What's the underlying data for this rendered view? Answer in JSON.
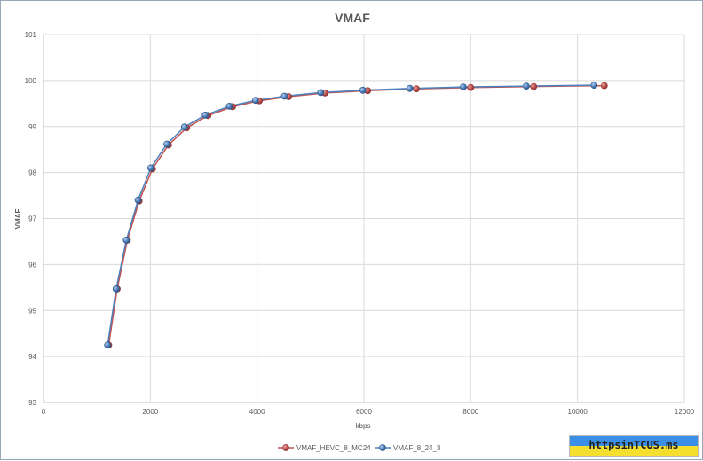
{
  "chart_data": {
    "type": "line",
    "title": "VMAF",
    "xlabel": "kbps",
    "ylabel": "VMAF",
    "xlim": [
      0,
      12000
    ],
    "ylim": [
      93,
      101
    ],
    "xticks": [
      0,
      2000,
      4000,
      6000,
      8000,
      10000,
      12000
    ],
    "yticks": [
      93,
      94,
      95,
      96,
      97,
      98,
      99,
      100,
      101
    ],
    "grid": "horizontal and vertical",
    "legend_position": "bottom",
    "series": [
      {
        "name": "VMAF_HEVC_8_MC24",
        "color": "#c0504d",
        "points": [
          [
            1220,
            94.25
          ],
          [
            1380,
            95.47
          ],
          [
            1570,
            96.53
          ],
          [
            1790,
            97.38
          ],
          [
            2040,
            98.08
          ],
          [
            2340,
            98.6
          ],
          [
            2680,
            98.97
          ],
          [
            3080,
            99.24
          ],
          [
            3540,
            99.43
          ],
          [
            4040,
            99.56
          ],
          [
            4590,
            99.65
          ],
          [
            5270,
            99.73
          ],
          [
            6070,
            99.78
          ],
          [
            6980,
            99.82
          ],
          [
            8000,
            99.85
          ],
          [
            9180,
            99.87
          ],
          [
            10500,
            99.89
          ]
        ]
      },
      {
        "name": "VMAF_8_24_3",
        "color": "#4f81bd",
        "points": [
          [
            1200,
            94.25
          ],
          [
            1360,
            95.47
          ],
          [
            1550,
            96.53
          ],
          [
            1770,
            97.4
          ],
          [
            2010,
            98.1
          ],
          [
            2310,
            98.62
          ],
          [
            2640,
            98.99
          ],
          [
            3030,
            99.25
          ],
          [
            3480,
            99.44
          ],
          [
            3970,
            99.57
          ],
          [
            4510,
            99.66
          ],
          [
            5190,
            99.74
          ],
          [
            5980,
            99.79
          ],
          [
            6860,
            99.83
          ],
          [
            7860,
            99.86
          ],
          [
            9040,
            99.88
          ],
          [
            10310,
            99.9
          ]
        ]
      }
    ]
  },
  "watermark": {
    "text": "httpsinTCUS.ms",
    "colors": [
      "#3c8fe6",
      "#f4df2e"
    ]
  }
}
